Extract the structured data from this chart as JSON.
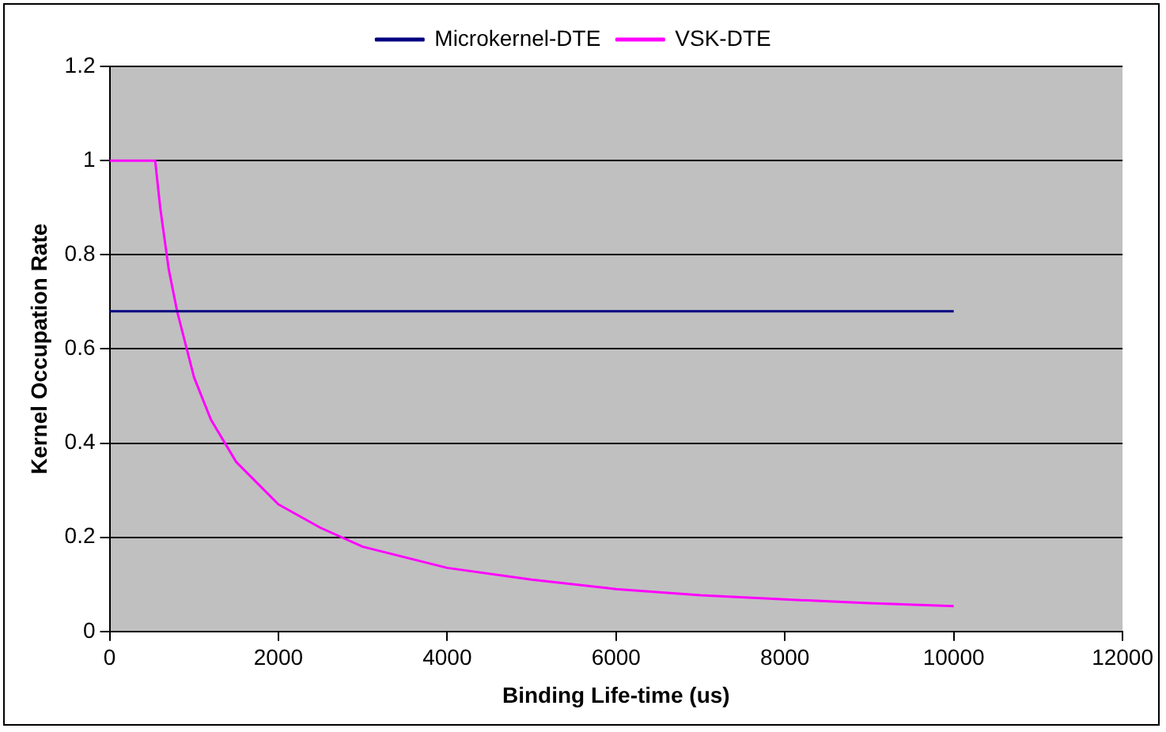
{
  "chart_data": {
    "type": "line",
    "xlabel": "Binding Life-time (us)",
    "ylabel": "Kernel Occupation Rate",
    "xlim": [
      0,
      12000
    ],
    "xticks": [
      0,
      2000,
      4000,
      6000,
      8000,
      10000,
      12000
    ],
    "ylim": [
      0,
      1.2
    ],
    "yticks": [
      0,
      0.2,
      0.4,
      0.6,
      0.8,
      1,
      1.2
    ],
    "grid": "y",
    "legend": "top",
    "marker": "none",
    "series": [
      {
        "name": "Microkernel-DTE",
        "color": "#000080",
        "x": [
          0,
          10000
        ],
        "values": [
          0.68,
          0.68
        ]
      },
      {
        "name": "VSK-DTE",
        "color": "#ff00ff",
        "x": [
          0,
          540,
          600,
          700,
          800,
          1000,
          1200,
          1500,
          2000,
          2500,
          3000,
          4000,
          5000,
          6000,
          7000,
          8000,
          9000,
          10000
        ],
        "values": [
          1,
          1,
          0.9,
          0.77,
          0.68,
          0.54,
          0.45,
          0.36,
          0.27,
          0.22,
          0.18,
          0.135,
          0.11,
          0.09,
          0.077,
          0.068,
          0.06,
          0.054
        ]
      }
    ]
  }
}
